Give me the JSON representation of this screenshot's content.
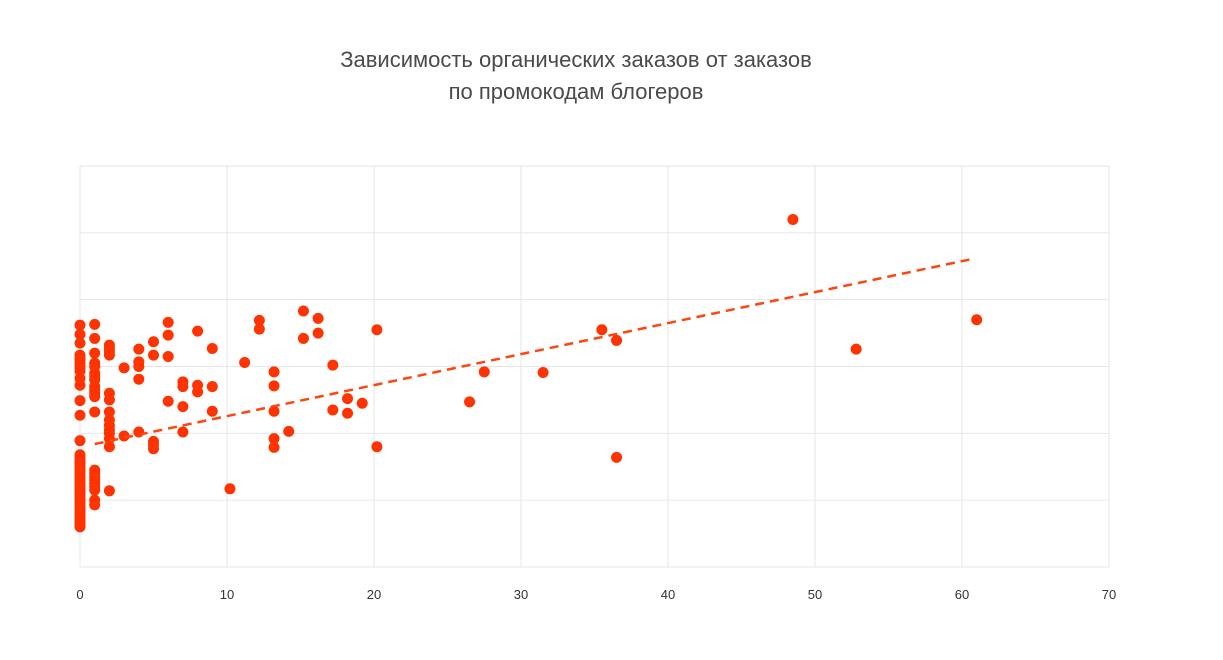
{
  "chart_data": {
    "type": "scatter",
    "title_lines": [
      "Зависимость органических заказов от заказов",
      "по промокодам блогеров"
    ],
    "xlabel": "",
    "ylabel": "",
    "xlim": [
      0,
      70
    ],
    "ylim": [
      0,
      6
    ],
    "x_ticks": [
      0,
      10,
      20,
      30,
      40,
      50,
      60,
      70
    ],
    "x_tick_labels": [
      "0",
      "10",
      "20",
      "30",
      "40",
      "50",
      "60",
      "70"
    ],
    "y_tick_labels_visible": false,
    "grid": true,
    "colors": {
      "points": "#ff3300",
      "trend": "#ff4410",
      "grid": "#e6e6e6"
    },
    "trendline": {
      "style": "dashed",
      "x": [
        1,
        60.5
      ],
      "y": [
        1.84,
        4.6
      ]
    },
    "points": [
      [
        0,
        0.6
      ],
      [
        0,
        0.64
      ],
      [
        0,
        0.68
      ],
      [
        0,
        0.72
      ],
      [
        0,
        0.76
      ],
      [
        0,
        0.8
      ],
      [
        0,
        0.84
      ],
      [
        0,
        0.88
      ],
      [
        0,
        0.92
      ],
      [
        0,
        0.96
      ],
      [
        0,
        1.0
      ],
      [
        0,
        1.04
      ],
      [
        0,
        1.08
      ],
      [
        0,
        1.12
      ],
      [
        0,
        1.16
      ],
      [
        0,
        1.2
      ],
      [
        0,
        1.24
      ],
      [
        0,
        1.28
      ],
      [
        0,
        1.32
      ],
      [
        0,
        1.36
      ],
      [
        0,
        1.4
      ],
      [
        0,
        1.44
      ],
      [
        0,
        1.48
      ],
      [
        0,
        1.52
      ],
      [
        0,
        1.56
      ],
      [
        0,
        1.6
      ],
      [
        0,
        1.64
      ],
      [
        0,
        1.68
      ],
      [
        0,
        1.89
      ],
      [
        0,
        2.27
      ],
      [
        0,
        2.49
      ],
      [
        0,
        2.72
      ],
      [
        0,
        2.82
      ],
      [
        0,
        2.93
      ],
      [
        0,
        2.98
      ],
      [
        0,
        3.03
      ],
      [
        0,
        3.08
      ],
      [
        0,
        3.12
      ],
      [
        0,
        3.17
      ],
      [
        0,
        3.35
      ],
      [
        0,
        3.48
      ],
      [
        0,
        3.62
      ],
      [
        1,
        0.93
      ],
      [
        1,
        1.0
      ],
      [
        1,
        1.15
      ],
      [
        1,
        1.2
      ],
      [
        1,
        1.25
      ],
      [
        1,
        1.3
      ],
      [
        1,
        1.35
      ],
      [
        1,
        1.4
      ],
      [
        1,
        1.45
      ],
      [
        1,
        2.32
      ],
      [
        1,
        2.55
      ],
      [
        1,
        2.6
      ],
      [
        1,
        2.65
      ],
      [
        1,
        2.7
      ],
      [
        1,
        2.8
      ],
      [
        1,
        2.85
      ],
      [
        1,
        2.9
      ],
      [
        1,
        3.0
      ],
      [
        1,
        3.05
      ],
      [
        1,
        3.2
      ],
      [
        1,
        3.42
      ],
      [
        1,
        3.63
      ],
      [
        2,
        1.14
      ],
      [
        2,
        1.8
      ],
      [
        2,
        1.92
      ],
      [
        2,
        2.0
      ],
      [
        2,
        2.05
      ],
      [
        2,
        2.12
      ],
      [
        2,
        2.2
      ],
      [
        2,
        2.32
      ],
      [
        2,
        2.5
      ],
      [
        2,
        2.6
      ],
      [
        2,
        3.17
      ],
      [
        2,
        3.22
      ],
      [
        2,
        3.27
      ],
      [
        2,
        3.32
      ],
      [
        3,
        1.96
      ],
      [
        3,
        2.98
      ],
      [
        4,
        2.02
      ],
      [
        4,
        2.81
      ],
      [
        4,
        3.0
      ],
      [
        4,
        3.07
      ],
      [
        4,
        3.26
      ],
      [
        5,
        1.77
      ],
      [
        5,
        1.83
      ],
      [
        5,
        1.88
      ],
      [
        5,
        3.17
      ],
      [
        5,
        3.37
      ],
      [
        6,
        2.48
      ],
      [
        6,
        3.15
      ],
      [
        6,
        3.47
      ],
      [
        6,
        3.66
      ],
      [
        7,
        2.02
      ],
      [
        7,
        2.4
      ],
      [
        7,
        2.7
      ],
      [
        7,
        2.77
      ],
      [
        8,
        2.62
      ],
      [
        8,
        2.72
      ],
      [
        8,
        3.53
      ],
      [
        9,
        2.33
      ],
      [
        9,
        2.7
      ],
      [
        9,
        3.27
      ],
      [
        10.2,
        1.17
      ],
      [
        11.2,
        3.06
      ],
      [
        12.2,
        3.56
      ],
      [
        12.2,
        3.69
      ],
      [
        13.2,
        1.79
      ],
      [
        13.2,
        1.92
      ],
      [
        13.2,
        2.33
      ],
      [
        13.2,
        2.71
      ],
      [
        13.2,
        2.92
      ],
      [
        14.2,
        2.03
      ],
      [
        15.2,
        3.42
      ],
      [
        15.2,
        3.83
      ],
      [
        16.2,
        3.5
      ],
      [
        16.2,
        3.72
      ],
      [
        17.2,
        2.35
      ],
      [
        17.2,
        3.02
      ],
      [
        18.2,
        2.3
      ],
      [
        18.2,
        2.52
      ],
      [
        19.2,
        2.45
      ],
      [
        20.2,
        1.8
      ],
      [
        20.2,
        3.55
      ],
      [
        26.5,
        2.47
      ],
      [
        27.5,
        2.92
      ],
      [
        31.5,
        2.91
      ],
      [
        35.5,
        3.55
      ],
      [
        36.5,
        1.64
      ],
      [
        36.5,
        3.39
      ],
      [
        48.5,
        5.2
      ],
      [
        52.8,
        3.26
      ],
      [
        61,
        3.7
      ]
    ]
  }
}
